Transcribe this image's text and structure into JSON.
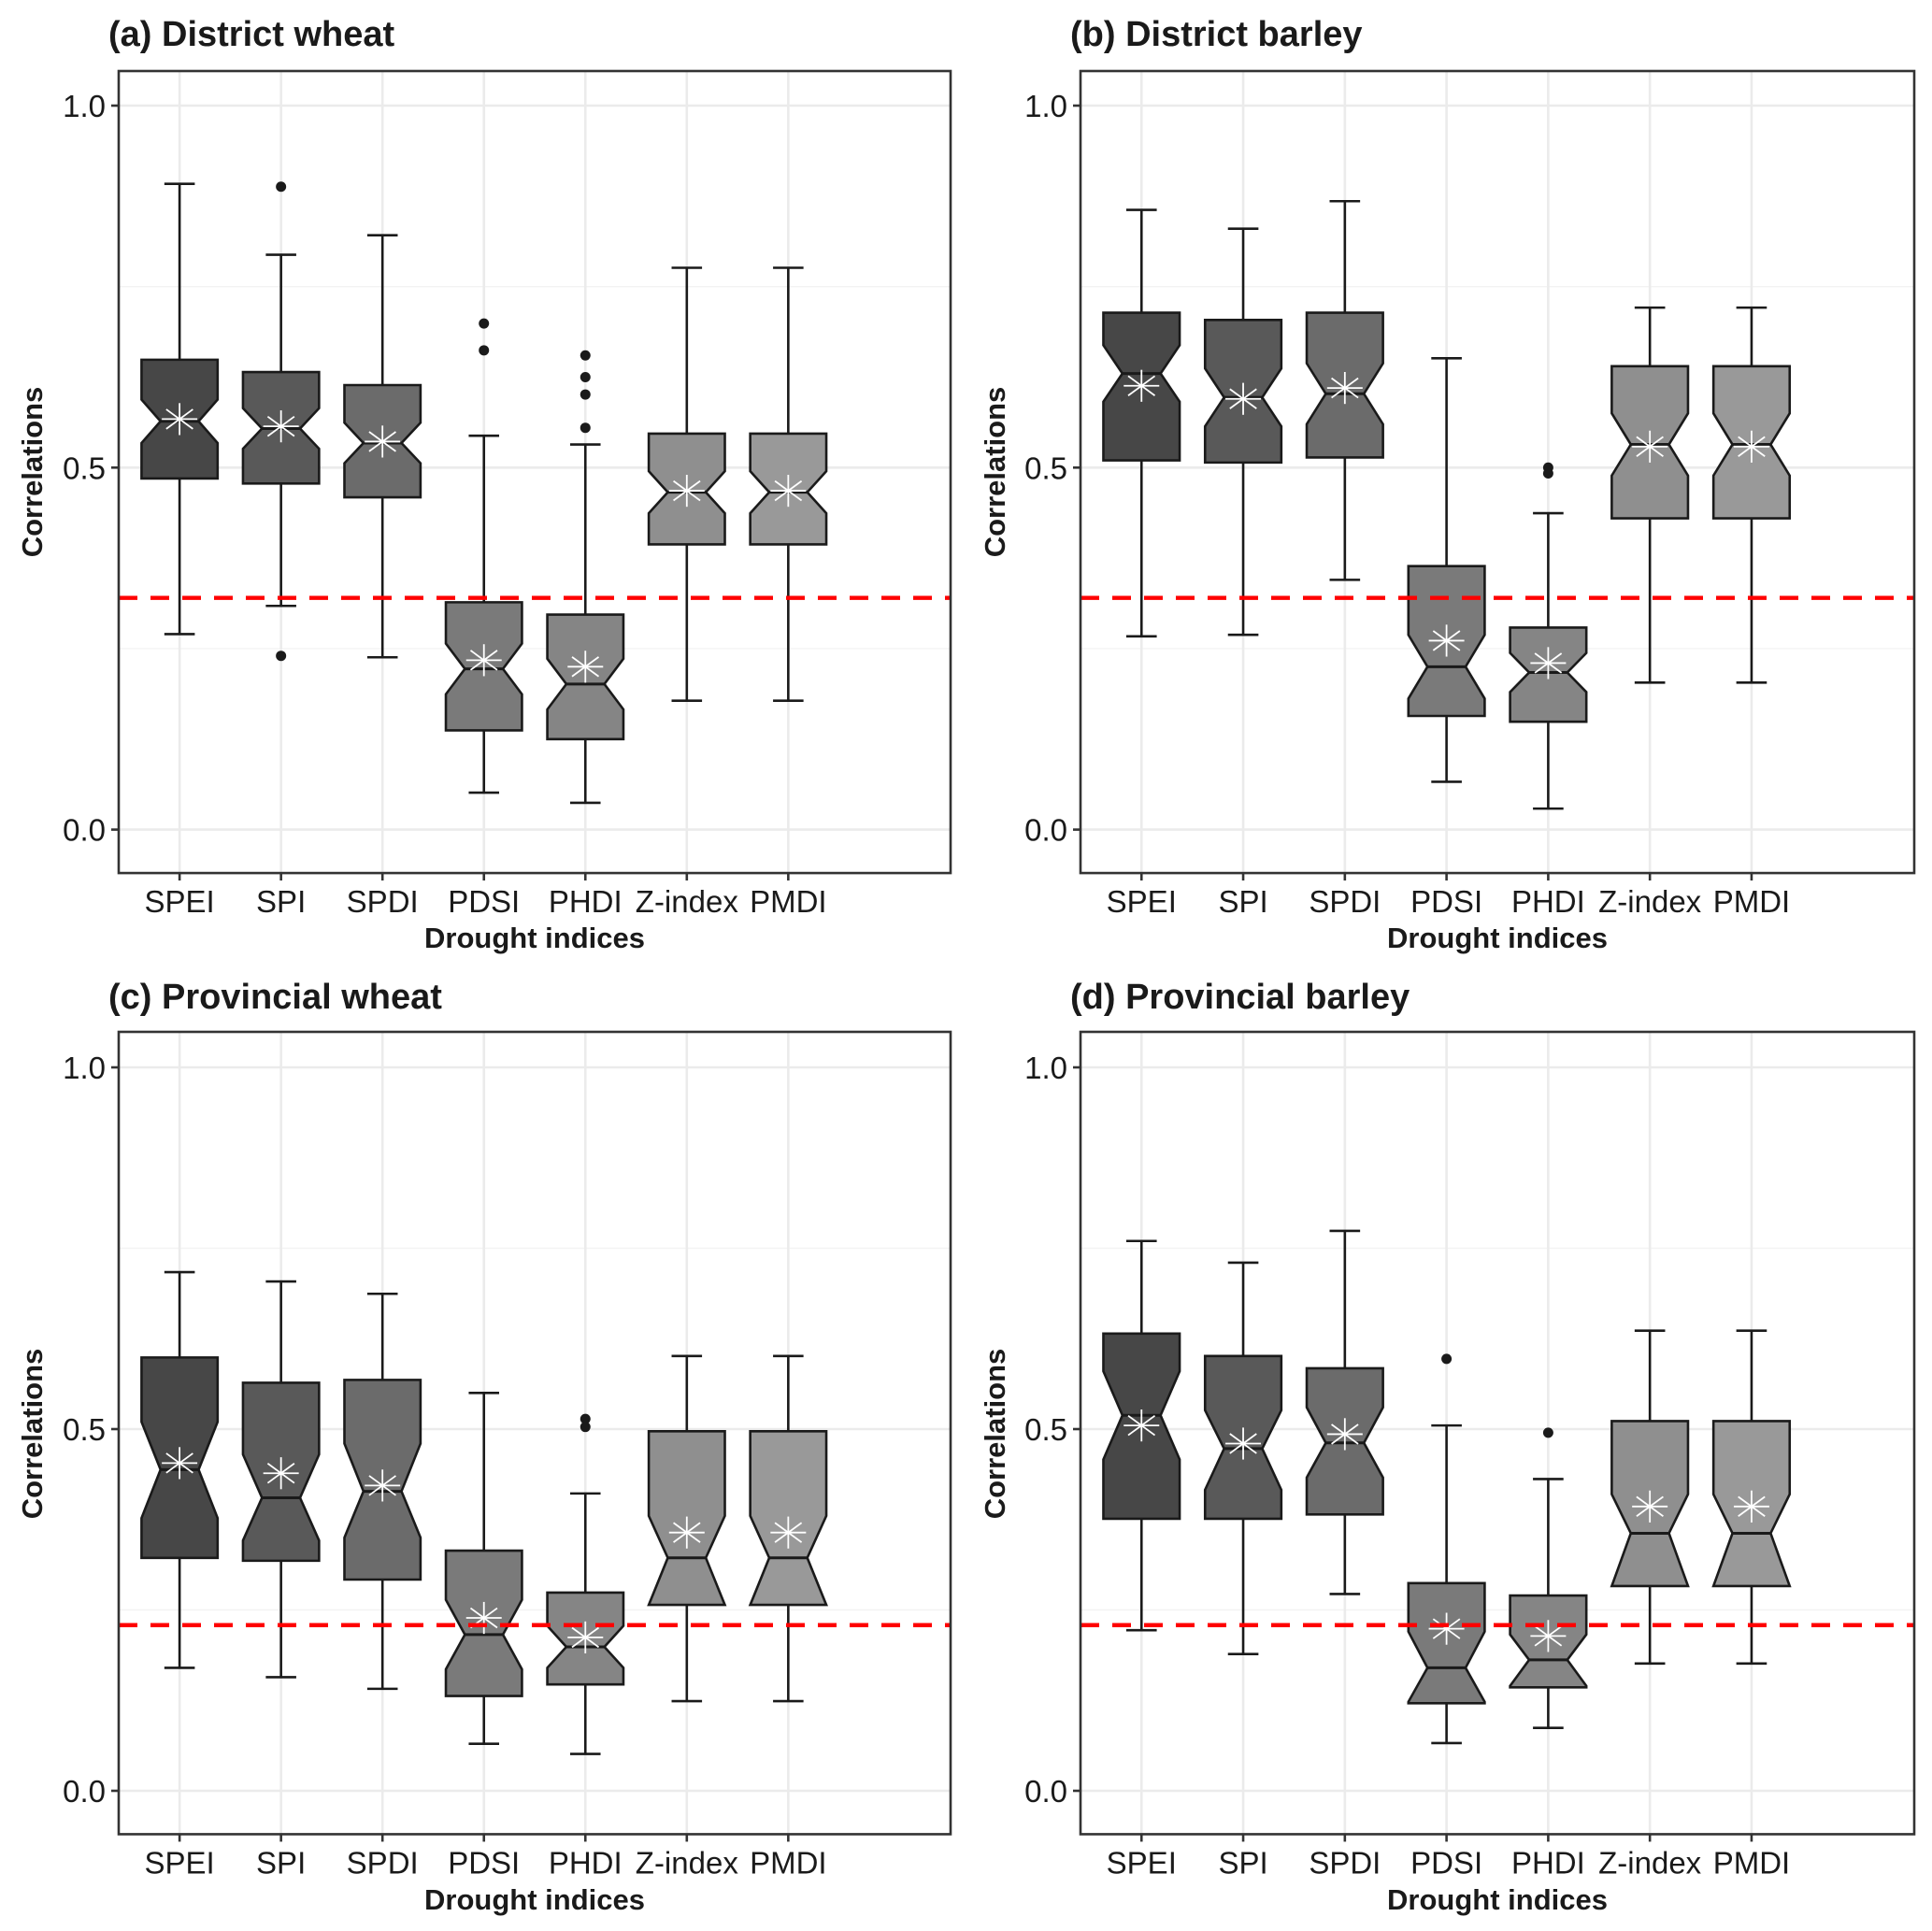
{
  "figure": {
    "y_axis_label": "Correlations",
    "x_axis_label": "Drought indices",
    "y_ticks": [
      "0.0",
      "0.5",
      "1.0"
    ]
  },
  "chart_data": [
    {
      "type": "boxplot",
      "title": "(a) District wheat",
      "xlabel": "Drought indices",
      "ylabel": "Correlations",
      "ylim": [
        -0.06,
        1.05
      ],
      "y_ticks": [
        0.0,
        0.5,
        1.0
      ],
      "grid": true,
      "notched": true,
      "reference_line": 0.32,
      "categories": [
        "SPEI",
        "SPI",
        "SPDI",
        "PDSI",
        "PHDI",
        "Z-index",
        "PMDI"
      ],
      "fills": [
        "#474747",
        "#595959",
        "#6b6b6b",
        "#7a7a7a",
        "#858585",
        "#8f8f8f",
        "#999999"
      ],
      "boxes": [
        {
          "lower_whisker": 0.27,
          "q1": 0.485,
          "median": 0.564,
          "q3": 0.649,
          "upper_whisker": 0.892,
          "mean": 0.567,
          "notch": [
            0.534,
            0.594
          ],
          "outliers": []
        },
        {
          "lower_whisker": 0.309,
          "q1": 0.478,
          "median": 0.554,
          "q3": 0.632,
          "upper_whisker": 0.794,
          "mean": 0.557,
          "notch": [
            0.526,
            0.582
          ],
          "outliers": [
            0.888,
            0.24
          ]
        },
        {
          "lower_whisker": 0.238,
          "q1": 0.459,
          "median": 0.534,
          "q3": 0.614,
          "upper_whisker": 0.821,
          "mean": 0.536,
          "notch": [
            0.506,
            0.562
          ],
          "outliers": []
        },
        {
          "lower_whisker": 0.051,
          "q1": 0.137,
          "median": 0.222,
          "q3": 0.314,
          "upper_whisker": 0.544,
          "mean": 0.234,
          "notch": [
            0.187,
            0.257
          ],
          "outliers": [
            0.699,
            0.662
          ]
        },
        {
          "lower_whisker": 0.037,
          "q1": 0.125,
          "median": 0.201,
          "q3": 0.297,
          "upper_whisker": 0.532,
          "mean": 0.225,
          "notch": [
            0.166,
            0.236
          ],
          "outliers": [
            0.655,
            0.625,
            0.601,
            0.555
          ]
        },
        {
          "lower_whisker": 0.178,
          "q1": 0.394,
          "median": 0.466,
          "q3": 0.547,
          "upper_whisker": 0.776,
          "mean": 0.468,
          "notch": [
            0.437,
            0.495
          ],
          "outliers": []
        },
        {
          "lower_whisker": 0.178,
          "q1": 0.394,
          "median": 0.466,
          "q3": 0.547,
          "upper_whisker": 0.776,
          "mean": 0.468,
          "notch": [
            0.437,
            0.495
          ],
          "outliers": []
        }
      ]
    },
    {
      "type": "boxplot",
      "title": "(b) District barley",
      "xlabel": "Drought indices",
      "ylabel": "Correlations",
      "ylim": [
        -0.06,
        1.05
      ],
      "y_ticks": [
        0.0,
        0.5,
        1.0
      ],
      "grid": true,
      "notched": true,
      "reference_line": 0.32,
      "categories": [
        "SPEI",
        "SPI",
        "SPDI",
        "PDSI",
        "PHDI",
        "Z-index",
        "PMDI"
      ],
      "fills": [
        "#474747",
        "#595959",
        "#6b6b6b",
        "#7a7a7a",
        "#858585",
        "#8f8f8f",
        "#999999"
      ],
      "boxes": [
        {
          "lower_whisker": 0.267,
          "q1": 0.51,
          "median": 0.63,
          "q3": 0.714,
          "upper_whisker": 0.856,
          "mean": 0.613,
          "notch": [
            0.591,
            0.669
          ],
          "outliers": []
        },
        {
          "lower_whisker": 0.269,
          "q1": 0.507,
          "median": 0.597,
          "q3": 0.704,
          "upper_whisker": 0.83,
          "mean": 0.595,
          "notch": [
            0.557,
            0.637
          ],
          "outliers": []
        },
        {
          "lower_whisker": 0.345,
          "q1": 0.514,
          "median": 0.602,
          "q3": 0.714,
          "upper_whisker": 0.868,
          "mean": 0.61,
          "notch": [
            0.56,
            0.644
          ],
          "outliers": []
        },
        {
          "lower_whisker": 0.066,
          "q1": 0.157,
          "median": 0.225,
          "q3": 0.364,
          "upper_whisker": 0.651,
          "mean": 0.261,
          "notch": [
            0.181,
            0.269
          ],
          "outliers": []
        },
        {
          "lower_whisker": 0.029,
          "q1": 0.149,
          "median": 0.217,
          "q3": 0.279,
          "upper_whisker": 0.437,
          "mean": 0.23,
          "notch": [
            0.19,
            0.244
          ],
          "outliers": [
            0.5,
            0.492
          ]
        },
        {
          "lower_whisker": 0.203,
          "q1": 0.43,
          "median": 0.532,
          "q3": 0.64,
          "upper_whisker": 0.721,
          "mean": 0.529,
          "notch": [
            0.489,
            0.575
          ],
          "outliers": []
        },
        {
          "lower_whisker": 0.203,
          "q1": 0.43,
          "median": 0.532,
          "q3": 0.64,
          "upper_whisker": 0.721,
          "mean": 0.529,
          "notch": [
            0.489,
            0.575
          ],
          "outliers": []
        }
      ]
    },
    {
      "type": "boxplot",
      "title": "(c) Provincial wheat",
      "xlabel": "Drought indices",
      "ylabel": "Correlations",
      "ylim": [
        -0.06,
        1.05
      ],
      "y_ticks": [
        0.0,
        0.5,
        1.0
      ],
      "grid": true,
      "notched": true,
      "reference_line": 0.229,
      "categories": [
        "SPEI",
        "SPI",
        "SPDI",
        "PDSI",
        "PHDI",
        "Z-index",
        "PMDI"
      ],
      "fills": [
        "#474747",
        "#595959",
        "#6b6b6b",
        "#7a7a7a",
        "#858585",
        "#8f8f8f",
        "#999999"
      ],
      "boxes": [
        {
          "lower_whisker": 0.17,
          "q1": 0.322,
          "median": 0.444,
          "q3": 0.599,
          "upper_whisker": 0.717,
          "mean": 0.453,
          "notch": [
            0.377,
            0.51
          ],
          "outliers": []
        },
        {
          "lower_whisker": 0.157,
          "q1": 0.318,
          "median": 0.405,
          "q3": 0.564,
          "upper_whisker": 0.704,
          "mean": 0.439,
          "notch": [
            0.346,
            0.465
          ],
          "outliers": []
        },
        {
          "lower_whisker": 0.141,
          "q1": 0.292,
          "median": 0.414,
          "q3": 0.568,
          "upper_whisker": 0.687,
          "mean": 0.422,
          "notch": [
            0.35,
            0.48
          ],
          "outliers": []
        },
        {
          "lower_whisker": 0.065,
          "q1": 0.131,
          "median": 0.216,
          "q3": 0.332,
          "upper_whisker": 0.55,
          "mean": 0.239,
          "notch": [
            0.168,
            0.264
          ],
          "outliers": []
        },
        {
          "lower_whisker": 0.051,
          "q1": 0.147,
          "median": 0.199,
          "q3": 0.274,
          "upper_whisker": 0.411,
          "mean": 0.212,
          "notch": [
            0.17,
            0.228
          ],
          "outliers": [
            0.514,
            0.503
          ]
        },
        {
          "lower_whisker": 0.124,
          "q1": 0.257,
          "median": 0.322,
          "q3": 0.497,
          "upper_whisker": 0.601,
          "mean": 0.357,
          "notch": [
            0.257,
            0.38
          ],
          "outliers": []
        },
        {
          "lower_whisker": 0.124,
          "q1": 0.257,
          "median": 0.322,
          "q3": 0.497,
          "upper_whisker": 0.601,
          "mean": 0.357,
          "notch": [
            0.257,
            0.38
          ],
          "outliers": []
        }
      ]
    },
    {
      "type": "boxplot",
      "title": "(d) Provincial barley",
      "xlabel": "Drought indices",
      "ylabel": "Correlations",
      "ylim": [
        -0.06,
        1.05
      ],
      "y_ticks": [
        0.0,
        0.5,
        1.0
      ],
      "grid": true,
      "notched": true,
      "reference_line": 0.229,
      "categories": [
        "SPEI",
        "SPI",
        "SPDI",
        "PDSI",
        "PHDI",
        "Z-index",
        "PMDI"
      ],
      "fills": [
        "#474747",
        "#595959",
        "#6b6b6b",
        "#7a7a7a",
        "#858585",
        "#8f8f8f",
        "#999999"
      ],
      "boxes": [
        {
          "lower_whisker": 0.222,
          "q1": 0.376,
          "median": 0.519,
          "q3": 0.632,
          "upper_whisker": 0.76,
          "mean": 0.505,
          "notch": [
            0.458,
            0.58
          ],
          "outliers": []
        },
        {
          "lower_whisker": 0.189,
          "q1": 0.376,
          "median": 0.473,
          "q3": 0.601,
          "upper_whisker": 0.73,
          "mean": 0.48,
          "notch": [
            0.416,
            0.526
          ],
          "outliers": []
        },
        {
          "lower_whisker": 0.272,
          "q1": 0.382,
          "median": 0.481,
          "q3": 0.584,
          "upper_whisker": 0.774,
          "mean": 0.493,
          "notch": [
            0.433,
            0.53
          ],
          "outliers": []
        },
        {
          "lower_whisker": 0.066,
          "q1": 0.121,
          "median": 0.17,
          "q3": 0.287,
          "upper_whisker": 0.505,
          "mean": 0.224,
          "notch": [
            0.123,
            0.22
          ],
          "outliers": [
            0.597
          ]
        },
        {
          "lower_whisker": 0.087,
          "q1": 0.143,
          "median": 0.181,
          "q3": 0.27,
          "upper_whisker": 0.431,
          "mean": 0.214,
          "notch": [
            0.145,
            0.216
          ],
          "outliers": [
            0.495
          ]
        },
        {
          "lower_whisker": 0.176,
          "q1": 0.283,
          "median": 0.356,
          "q3": 0.511,
          "upper_whisker": 0.636,
          "mean": 0.393,
          "notch": [
            0.283,
            0.41
          ],
          "outliers": []
        },
        {
          "lower_whisker": 0.176,
          "q1": 0.283,
          "median": 0.356,
          "q3": 0.511,
          "upper_whisker": 0.636,
          "mean": 0.393,
          "notch": [
            0.283,
            0.41
          ],
          "outliers": []
        }
      ]
    }
  ]
}
